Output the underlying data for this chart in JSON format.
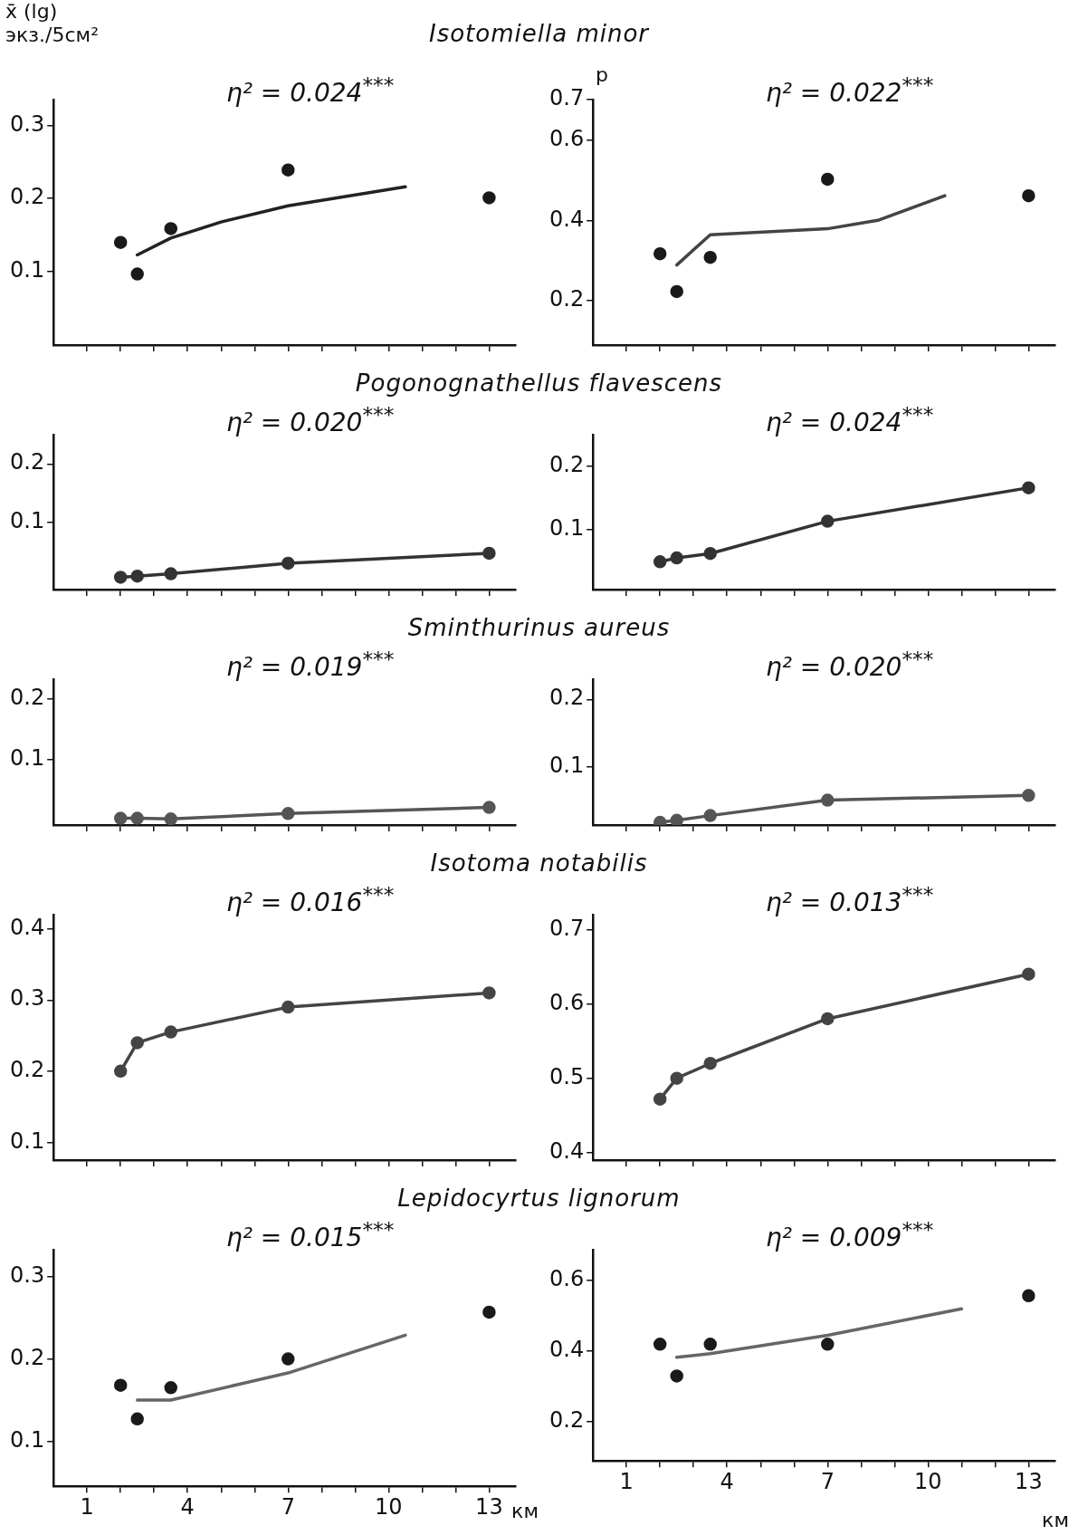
{
  "chart_data": [
    {
      "type": "scatter",
      "title": "Isotomiella minor",
      "ylabel": "x̄ (lg) экз./5см²",
      "annotations": [
        "η² = 0.024$^{***}$"
      ],
      "xlim": [
        0,
        13.8
      ],
      "xticks": [
        1,
        {
          "value": 2,
          "label": null
        },
        {
          "value": 3,
          "label": null
        },
        4,
        {
          "value": 5,
          "label": null
        },
        {
          "value": 6,
          "label": null
        },
        7,
        {
          "value": 8,
          "label": null
        },
        {
          "value": 9,
          "label": null
        },
        10,
        {
          "value": 11,
          "label": null
        },
        {
          "value": 12,
          "label": null
        },
        13
      ],
      "ylim": [
        0,
        0.335
      ],
      "yticks": [
        0.1,
        0.2,
        0.3
      ],
      "tick_labels": "y",
      "series": [
        {
          "marker": "circle",
          "color": "#1a1a1a",
          "x": [
            2,
            2.5,
            3.5,
            7,
            13
          ],
          "values": [
            0.14,
            0.097,
            0.159,
            0.239,
            0.201
          ]
        },
        {
          "type": "line",
          "marker": "none",
          "color": "#222222",
          "x": [
            2.5,
            3.5,
            5,
            7,
            10.5
          ],
          "values": [
            0.123,
            0.146,
            0.168,
            0.19,
            0.216
          ]
        }
      ]
    },
    {
      "type": "scatter",
      "ylabel": "p",
      "annotations": [
        "η² = 0.022$^{***}$"
      ],
      "xlim": [
        0,
        13.8
      ],
      "xticks": [
        1,
        {
          "value": 2,
          "label": null
        },
        {
          "value": 3,
          "label": null
        },
        4,
        {
          "value": 5,
          "label": null
        },
        {
          "value": 6,
          "label": null
        },
        7,
        {
          "value": 8,
          "label": null
        },
        {
          "value": 9,
          "label": null
        },
        10,
        {
          "value": 11,
          "label": null
        },
        {
          "value": 12,
          "label": null
        },
        13
      ],
      "ylim": [
        0.09,
        0.7
      ],
      "yticks": [
        0.2,
        0.4,
        0.6,
        0.7
      ],
      "tick_labels": "y",
      "series": [
        {
          "marker": "circle",
          "color": "#1a1a1a",
          "x": [
            2,
            2.5,
            3.5,
            7,
            13
          ],
          "values": [
            0.317,
            0.223,
            0.308,
            0.502,
            0.461
          ]
        },
        {
          "type": "line",
          "marker": "none",
          "color": "#444444",
          "x": [
            2.5,
            3.5,
            7,
            8.5,
            10.5
          ],
          "values": [
            0.289,
            0.364,
            0.379,
            0.4,
            0.461
          ]
        }
      ]
    },
    {
      "type": "line",
      "title": "Pogonognathellus flavescens",
      "annotations": [
        "η² = 0.020$^{***}$"
      ],
      "xlim": [
        0,
        13.8
      ],
      "xticks": [
        1,
        {
          "value": 2,
          "label": null
        },
        {
          "value": 3,
          "label": null
        },
        4,
        {
          "value": 5,
          "label": null
        },
        {
          "value": 6,
          "label": null
        },
        7,
        {
          "value": 8,
          "label": null
        },
        {
          "value": 9,
          "label": null
        },
        10,
        {
          "value": 11,
          "label": null
        },
        {
          "value": 12,
          "label": null
        },
        13
      ],
      "ylim": [
        -0.015,
        0.25
      ],
      "yticks": [
        0.1,
        0.2
      ],
      "tick_labels": "y",
      "series": [
        {
          "marker": "circle",
          "color": "#333333",
          "x": [
            2,
            2.5,
            3.5,
            7,
            13
          ],
          "values": [
            0.006,
            0.008,
            0.012,
            0.03,
            0.047
          ]
        }
      ]
    },
    {
      "type": "line",
      "annotations": [
        "η² = 0.024$^{***}$"
      ],
      "xlim": [
        0,
        13.8
      ],
      "xticks": [
        1,
        {
          "value": 2,
          "label": null
        },
        {
          "value": 3,
          "label": null
        },
        4,
        {
          "value": 5,
          "label": null
        },
        {
          "value": 6,
          "label": null
        },
        7,
        {
          "value": 8,
          "label": null
        },
        {
          "value": 9,
          "label": null
        },
        10,
        {
          "value": 11,
          "label": null
        },
        {
          "value": 12,
          "label": null
        },
        13
      ],
      "ylim": [
        0.005,
        0.25
      ],
      "yticks": [
        0.1,
        0.2
      ],
      "tick_labels": "y",
      "series": [
        {
          "marker": "circle",
          "color": "#333333",
          "x": [
            2,
            2.5,
            3.5,
            7,
            13
          ],
          "values": [
            0.049,
            0.055,
            0.062,
            0.113,
            0.166
          ]
        }
      ]
    },
    {
      "type": "line",
      "title": "Sminthurinus aureus",
      "annotations": [
        "η² = 0.019$^{***}$"
      ],
      "xlim": [
        0,
        13.8
      ],
      "xticks": [
        1,
        {
          "value": 2,
          "label": null
        },
        {
          "value": 3,
          "label": null
        },
        4,
        {
          "value": 5,
          "label": null
        },
        {
          "value": 6,
          "label": null
        },
        7,
        {
          "value": 8,
          "label": null
        },
        {
          "value": 9,
          "label": null
        },
        10,
        {
          "value": 11,
          "label": null
        },
        {
          "value": 12,
          "label": null
        },
        13
      ],
      "ylim": [
        -0.007,
        0.233
      ],
      "yticks": [
        0.1,
        0.2
      ],
      "tick_labels": "y",
      "series": [
        {
          "marker": "circle",
          "color": "#555555",
          "x": [
            2,
            2.5,
            3.5,
            7,
            13
          ],
          "values": [
            0.004,
            0.004,
            0.003,
            0.012,
            0.022
          ]
        }
      ]
    },
    {
      "type": "line",
      "annotations": [
        "η² = 0.020$^{***}$"
      ],
      "xlim": [
        0,
        13.8
      ],
      "xticks": [
        1,
        {
          "value": 2,
          "label": null
        },
        {
          "value": 3,
          "label": null
        },
        4,
        {
          "value": 5,
          "label": null
        },
        {
          "value": 6,
          "label": null
        },
        7,
        {
          "value": 8,
          "label": null
        },
        {
          "value": 9,
          "label": null
        },
        10,
        {
          "value": 11,
          "label": null
        },
        {
          "value": 12,
          "label": null
        },
        13
      ],
      "ylim": [
        0.013,
        0.23
      ],
      "yticks": [
        0.1,
        0.2
      ],
      "tick_labels": "y",
      "series": [
        {
          "marker": "circle",
          "color": "#555555",
          "x": [
            2,
            2.5,
            3.5,
            7,
            13
          ],
          "values": [
            0.017,
            0.02,
            0.027,
            0.05,
            0.057
          ]
        }
      ]
    },
    {
      "type": "line",
      "title": "Isotoma notabilis",
      "annotations": [
        "η² = 0.016$^{***}$"
      ],
      "xlim": [
        0,
        13.8
      ],
      "xticks": [
        1,
        {
          "value": 2,
          "label": null
        },
        {
          "value": 3,
          "label": null
        },
        4,
        {
          "value": 5,
          "label": null
        },
        {
          "value": 6,
          "label": null
        },
        7,
        {
          "value": 8,
          "label": null
        },
        {
          "value": 9,
          "label": null
        },
        10,
        {
          "value": 11,
          "label": null
        },
        {
          "value": 12,
          "label": null
        },
        13
      ],
      "ylim": [
        0.075,
        0.42
      ],
      "yticks": [
        0.1,
        0.2,
        0.3,
        0.4
      ],
      "tick_labels": "y",
      "series": [
        {
          "marker": "circle",
          "color": "#444444",
          "x": [
            2,
            2.5,
            3.5,
            7,
            13
          ],
          "values": [
            0.2,
            0.24,
            0.255,
            0.29,
            0.31
          ]
        }
      ]
    },
    {
      "type": "line",
      "annotations": [
        "η² = 0.013$^{***}$"
      ],
      "xlim": [
        0,
        13.8
      ],
      "xticks": [
        1,
        {
          "value": 2,
          "label": null
        },
        {
          "value": 3,
          "label": null
        },
        4,
        {
          "value": 5,
          "label": null
        },
        {
          "value": 6,
          "label": null
        },
        7,
        {
          "value": 8,
          "label": null
        },
        {
          "value": 9,
          "label": null
        },
        10,
        {
          "value": 11,
          "label": null
        },
        {
          "value": 12,
          "label": null
        },
        13
      ],
      "ylim": [
        0.39,
        0.72
      ],
      "yticks": [
        0.4,
        0.5,
        0.6,
        0.7
      ],
      "tick_labels": "y",
      "series": [
        {
          "marker": "circle",
          "color": "#444444",
          "x": [
            2,
            2.5,
            3.5,
            7,
            13
          ],
          "values": [
            0.472,
            0.5,
            0.52,
            0.58,
            0.64
          ]
        }
      ]
    },
    {
      "type": "scatter",
      "title": "Lepidocyrtus lignorum",
      "xlabel": "км",
      "annotations": [
        "η² = 0.015$^{***}$"
      ],
      "xlim": [
        0,
        13.8
      ],
      "xticks": [
        1,
        {
          "value": 2,
          "label": null
        },
        {
          "value": 3,
          "label": null
        },
        4,
        {
          "value": 5,
          "label": null
        },
        {
          "value": 6,
          "label": null
        },
        7,
        {
          "value": 8,
          "label": null
        },
        {
          "value": 9,
          "label": null
        },
        10,
        {
          "value": 11,
          "label": null
        },
        {
          "value": 12,
          "label": null
        },
        13
      ],
      "ylim": [
        0.045,
        0.333
      ],
      "yticks": [
        0.1,
        0.2,
        0.3
      ],
      "series": [
        {
          "marker": "circle",
          "color": "#1a1a1a",
          "x": [
            2,
            2.5,
            3.5,
            7,
            13
          ],
          "values": [
            0.168,
            0.127,
            0.165,
            0.2,
            0.257
          ]
        },
        {
          "type": "line",
          "marker": "none",
          "color": "#666666",
          "x": [
            2.5,
            3.5,
            7,
            10.5
          ],
          "values": [
            0.15,
            0.15,
            0.183,
            0.229
          ]
        }
      ]
    },
    {
      "type": "scatter",
      "xlabel": "км",
      "annotations": [
        "η² = 0.009$^{***}$"
      ],
      "xlim": [
        0,
        13.8
      ],
      "xticks": [
        1,
        {
          "value": 2,
          "label": null
        },
        {
          "value": 3,
          "label": null
        },
        4,
        {
          "value": 5,
          "label": null
        },
        {
          "value": 6,
          "label": null
        },
        7,
        {
          "value": 8,
          "label": null
        },
        {
          "value": 9,
          "label": null
        },
        10,
        {
          "value": 11,
          "label": null
        },
        {
          "value": 12,
          "label": null
        },
        13
      ],
      "ylim": [
        0.09,
        0.687
      ],
      "yticks": [
        0.2,
        0.4,
        0.6
      ],
      "series": [
        {
          "marker": "circle",
          "color": "#1a1a1a",
          "x": [
            2,
            2.5,
            3.5,
            7,
            13
          ],
          "values": [
            0.42,
            0.33,
            0.42,
            0.42,
            0.557
          ]
        },
        {
          "type": "line",
          "marker": "none",
          "color": "#666666",
          "x": [
            2.5,
            3.5,
            7,
            11
          ],
          "values": [
            0.383,
            0.393,
            0.445,
            0.52
          ]
        }
      ]
    }
  ]
}
